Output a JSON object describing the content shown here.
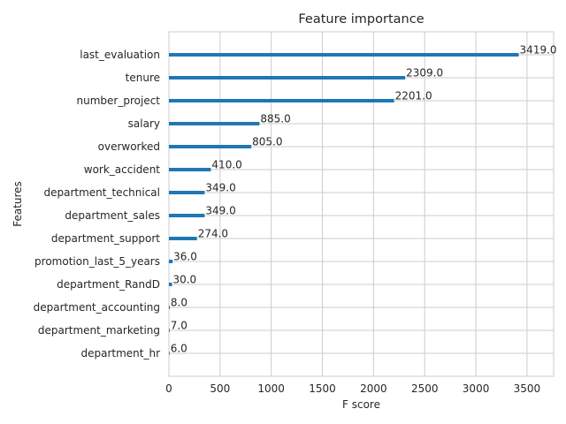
{
  "chart_data": {
    "type": "bar",
    "orientation": "horizontal",
    "title": "Feature importance",
    "xlabel": "F score",
    "ylabel": "Features",
    "xlim": [
      0,
      3760
    ],
    "xticks": [
      0,
      500,
      1000,
      1500,
      2000,
      2500,
      3000,
      3500
    ],
    "grid": true,
    "bar_color": "#1f77b4",
    "categories": [
      "last_evaluation",
      "tenure",
      "number_project",
      "salary",
      "overworked",
      "work_accident",
      "department_technical",
      "department_sales",
      "department_support",
      "promotion_last_5_years",
      "department_RandD",
      "department_accounting",
      "department_marketing",
      "department_hr"
    ],
    "values": [
      3419,
      2309,
      2201,
      885,
      805,
      410,
      349,
      349,
      274,
      36,
      30,
      8,
      7,
      6
    ],
    "data_labels": [
      "3419.0",
      "2309.0",
      "2201.0",
      "885.0",
      "805.0",
      "410.0",
      "349.0",
      "349.0",
      "274.0",
      "36.0",
      "30.0",
      "8.0",
      "7.0",
      "6.0"
    ]
  }
}
